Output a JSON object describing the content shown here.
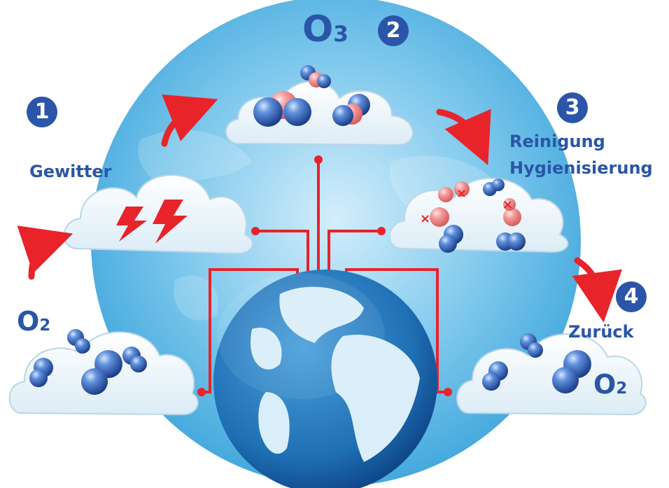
{
  "colors": {
    "accent_blue": "#2b55a8",
    "arrow_red": "#e8232a",
    "molecule_blue": "#3a6fc4",
    "molecule_red": "#f08a8a"
  },
  "steps": [
    {
      "number": "1",
      "label": "Gewitter"
    },
    {
      "number": "2",
      "label": ""
    },
    {
      "number": "3",
      "label": "Reinigung",
      "label2": "Hygienisierung"
    },
    {
      "number": "4",
      "label": "Zurück"
    }
  ],
  "formulas": {
    "o2_left": {
      "letter": "O",
      "sub": "2"
    },
    "o3_top": {
      "letter": "O",
      "sub": "3"
    },
    "o2_right": {
      "letter": "O",
      "sub": "2"
    }
  },
  "icons": [
    "lightning-icon",
    "globe-icon",
    "molecule-icon",
    "bacteria-icon",
    "curved-arrow-icon"
  ]
}
